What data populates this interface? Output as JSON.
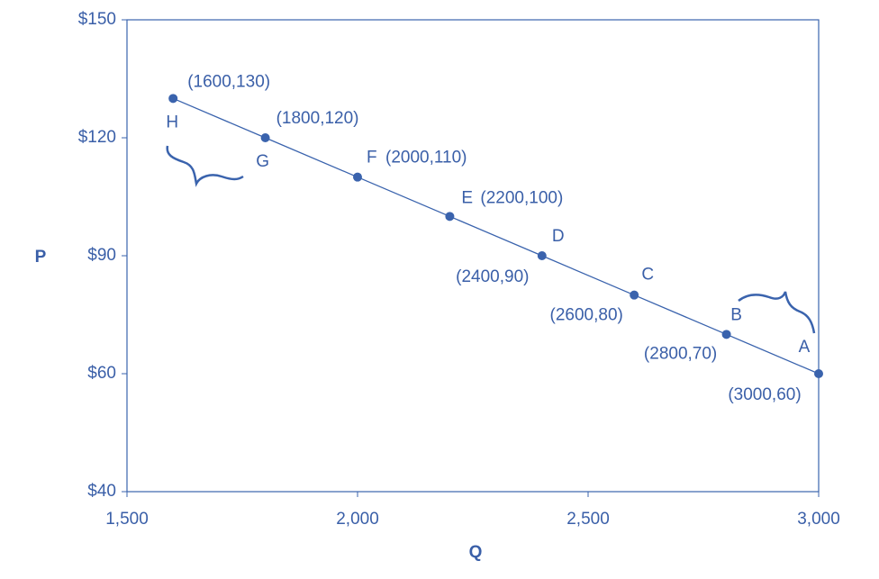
{
  "chart_data": {
    "type": "line",
    "x_label": "Q",
    "y_label": "P",
    "x": [
      1600,
      1800,
      2000,
      2200,
      2400,
      2600,
      2800,
      3000
    ],
    "series": [
      {
        "color": "#3a63ad",
        "values": [
          130,
          120,
          110,
          100,
          90,
          80,
          70,
          60
        ],
        "point_names": [
          "H",
          "G",
          "F",
          "E",
          "D",
          "C",
          "B",
          "A"
        ],
        "value_labels": [
          "(1600,130)",
          "(1800,120)",
          "(2000,110)",
          "(2200,100)",
          "(2400,90)",
          "(2600,80)",
          "(2800,70)",
          "(3000,60)"
        ]
      }
    ],
    "xlim": [
      1500,
      3000
    ],
    "xticks": [
      {
        "value": 1500,
        "label": "1,500"
      },
      {
        "value": 2000,
        "label": "2,000"
      },
      {
        "value": 2500,
        "label": "2,500"
      },
      {
        "value": 3000,
        "label": "3,000"
      }
    ],
    "ylim": [
      40,
      150
    ],
    "yticks": [
      {
        "value": 40,
        "label": "$40"
      },
      {
        "value": 60,
        "label": "$60"
      },
      {
        "value": 90,
        "label": "$90"
      },
      {
        "value": 120,
        "label": "$120"
      },
      {
        "value": 150,
        "label": "$150"
      }
    ]
  }
}
